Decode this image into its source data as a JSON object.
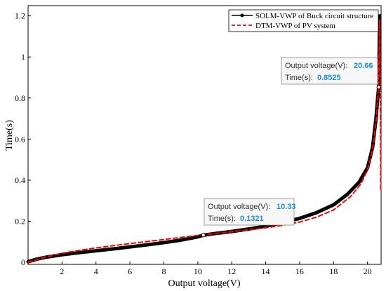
{
  "chart_data": {
    "type": "line",
    "xlabel": "Output voltage(V)",
    "ylabel": "Time(s)",
    "xlim": [
      0,
      20.8
    ],
    "ylim": [
      -0.01,
      1.25
    ],
    "xticks": [
      2,
      4,
      6,
      8,
      10,
      12,
      14,
      16,
      18,
      20
    ],
    "yticks": [
      0,
      0.2,
      0.4,
      0.6,
      0.8,
      1,
      1.2
    ],
    "ytick_labels": [
      "0",
      "0.2",
      "0.4",
      "0.6",
      "0.8",
      "1",
      "1.2"
    ],
    "grid": false,
    "legend_position": "top-right",
    "series": [
      {
        "name": "SOLM-VWP of Buck circuit structure",
        "style": "solid-thick",
        "color": "#000000",
        "points": [
          [
            0,
            0.003
          ],
          [
            0.5,
            0.015
          ],
          [
            1,
            0.024
          ],
          [
            2,
            0.037
          ],
          [
            3,
            0.047
          ],
          [
            4,
            0.056
          ],
          [
            5,
            0.065
          ],
          [
            6,
            0.075
          ],
          [
            7,
            0.085
          ],
          [
            8,
            0.096
          ],
          [
            9,
            0.108
          ],
          [
            10,
            0.124
          ],
          [
            10.33,
            0.1321
          ],
          [
            11,
            0.14
          ],
          [
            12,
            0.15
          ],
          [
            13,
            0.162
          ],
          [
            14,
            0.176
          ],
          [
            15,
            0.193
          ],
          [
            16,
            0.214
          ],
          [
            17,
            0.242
          ],
          [
            18,
            0.28
          ],
          [
            18.8,
            0.33
          ],
          [
            19.5,
            0.39
          ],
          [
            20,
            0.46
          ],
          [
            20.3,
            0.56
          ],
          [
            20.5,
            0.7
          ],
          [
            20.6,
            0.8
          ],
          [
            20.66,
            0.8525
          ],
          [
            20.68,
            0.95
          ],
          [
            20.7,
            1.1
          ],
          [
            20.72,
            1.2
          ]
        ]
      },
      {
        "name": "DTM-VWP of PV system",
        "style": "dashed",
        "color": "#ff0000",
        "points": [
          [
            0,
            0.0
          ],
          [
            0.5,
            0.012
          ],
          [
            1,
            0.025
          ],
          [
            2,
            0.044
          ],
          [
            3,
            0.058
          ],
          [
            4,
            0.07
          ],
          [
            5,
            0.081
          ],
          [
            6,
            0.091
          ],
          [
            7,
            0.101
          ],
          [
            8,
            0.111
          ],
          [
            9,
            0.121
          ],
          [
            10,
            0.131
          ],
          [
            11,
            0.14
          ],
          [
            12,
            0.149
          ],
          [
            13,
            0.158
          ],
          [
            14,
            0.168
          ],
          [
            15,
            0.18
          ],
          [
            16,
            0.196
          ],
          [
            17,
            0.22
          ],
          [
            18,
            0.255
          ],
          [
            19,
            0.32
          ],
          [
            19.6,
            0.38
          ],
          [
            20,
            0.45
          ],
          [
            20.3,
            0.55
          ],
          [
            20.5,
            0.68
          ],
          [
            20.62,
            0.82
          ],
          [
            20.68,
            1.0
          ],
          [
            20.7,
            1.1
          ],
          [
            20.72,
            1.18
          ],
          [
            20.75,
            0.9
          ],
          [
            20.77,
            0.6
          ],
          [
            20.78,
            0.35
          ]
        ]
      }
    ],
    "datatips": [
      {
        "x": 10.33,
        "y": 0.1321,
        "x_label": "Output voltage(V):",
        "x_value": "10.33",
        "y_label": "Time(s):",
        "y_value": "0.1321"
      },
      {
        "x": 20.66,
        "y": 0.8525,
        "x_label": "Output voltage(V):",
        "x_value": "20.66",
        "y_label": "Time(s):",
        "y_value": "0.8525"
      }
    ]
  }
}
